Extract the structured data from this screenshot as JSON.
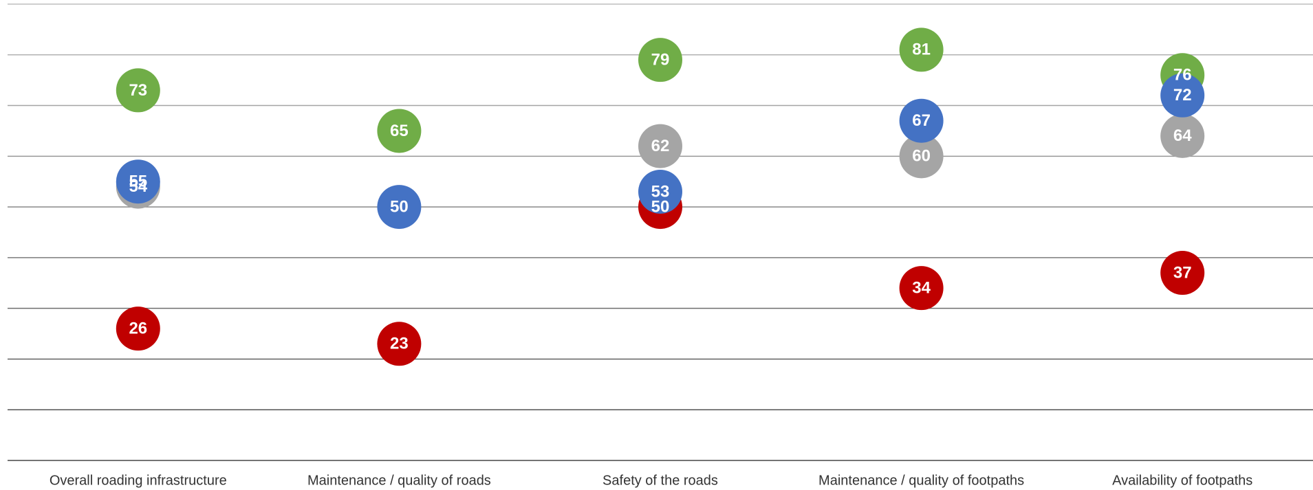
{
  "chart_data": {
    "type": "dot",
    "categories": [
      "Overall roading infrastructure",
      "Maintenance / quality of roads",
      "Safety of the roads",
      "Maintenance / quality of footpaths",
      "Availability of footpaths"
    ],
    "series": [
      {
        "color": "#70ad47",
        "values": [
          73,
          65,
          79,
          81,
          76
        ]
      },
      {
        "color": "#a5a5a5",
        "values": [
          54,
          null,
          62,
          60,
          64
        ]
      },
      {
        "color": "#c00000",
        "values": [
          26,
          23,
          50,
          34,
          37
        ]
      },
      {
        "color": "#4472c4",
        "values": [
          55,
          50,
          53,
          67,
          72
        ]
      }
    ],
    "ylim": [
      0,
      90
    ],
    "yticks": [
      0,
      10,
      20,
      30,
      40,
      50,
      60,
      70,
      80,
      90
    ],
    "grid": true
  }
}
